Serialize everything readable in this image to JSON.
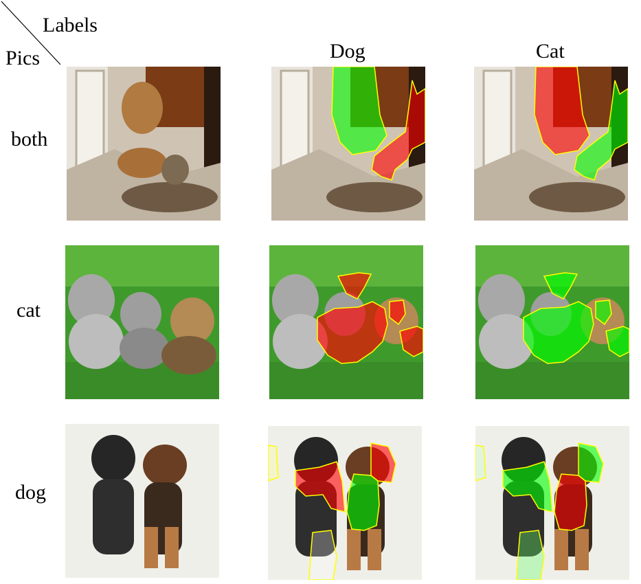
{
  "header": {
    "corner_top": "Labels",
    "corner_bottom": "Pics",
    "columns": [
      "Dog",
      "Cat"
    ]
  },
  "rows": [
    {
      "label": "both"
    },
    {
      "label": "cat"
    },
    {
      "label": "dog"
    }
  ],
  "colors": {
    "positive": "#00ff00",
    "negative": "#ff0000",
    "outline": "#ffff00"
  }
}
